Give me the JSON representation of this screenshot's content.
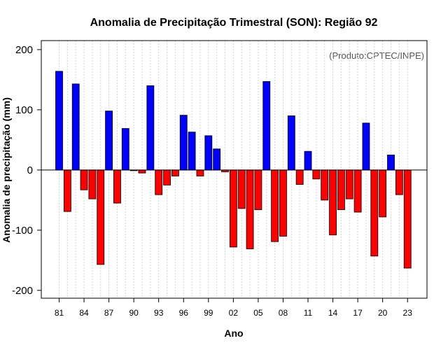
{
  "chart_data": {
    "type": "bar",
    "title": "Anomalia de Precipitação Trimestral (SON): Região 92",
    "xlabel": "Ano",
    "ylabel": "Anomalia de precipitação (mm)",
    "credit": "(Produto:CPTEC/INPE)",
    "ylim": [
      -213,
      215
    ],
    "yticks": [
      -200,
      -100,
      0,
      100,
      200
    ],
    "xtick_labels": [
      "81",
      "84",
      "87",
      "90",
      "93",
      "96",
      "99",
      "02",
      "05",
      "08",
      "11",
      "14",
      "17",
      "20",
      "23"
    ],
    "xtick_every": 3,
    "grid": "vertical-dashed",
    "positive_color": "#0000ff",
    "negative_color": "#ff0000",
    "categories": [
      "81",
      "82",
      "83",
      "84",
      "85",
      "86",
      "87",
      "88",
      "89",
      "90",
      "91",
      "92",
      "93",
      "94",
      "95",
      "96",
      "97",
      "98",
      "99",
      "00",
      "01",
      "02",
      "03",
      "04",
      "05",
      "06",
      "07",
      "08",
      "09",
      "10",
      "11",
      "12",
      "13",
      "14",
      "15",
      "16",
      "17",
      "18",
      "19",
      "20",
      "21",
      "22",
      "23"
    ],
    "values": [
      164,
      -69,
      143,
      -33,
      -48,
      -157,
      98,
      -55,
      69,
      -1,
      -5,
      140,
      -41,
      -25,
      -10,
      91,
      63,
      -10,
      57,
      35,
      -3,
      -128,
      -64,
      -131,
      -66,
      147,
      -119,
      -110,
      90,
      -24,
      31,
      -15,
      -50,
      -108,
      -66,
      -48,
      -70,
      78,
      -143,
      -78,
      25,
      -41,
      -163
    ]
  }
}
